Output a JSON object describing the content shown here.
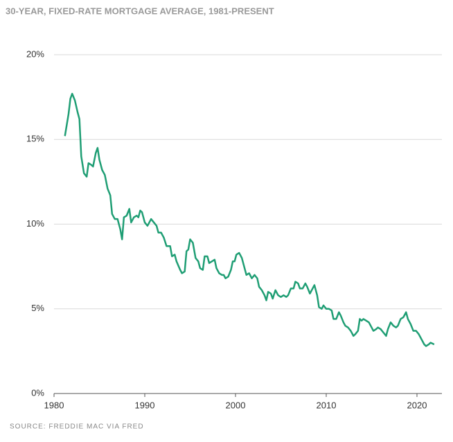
{
  "chart_data": {
    "type": "line",
    "title": "30-YEAR, FIXED-RATE MORTGAGE AVERAGE, 1981-PRESENT",
    "source": "SOURCE: FREDDIE MAC VIA FRED",
    "x": [
      1981.2,
      1981.6,
      1981.8,
      1982.0,
      1982.3,
      1982.6,
      1982.8,
      1983.0,
      1983.3,
      1983.6,
      1983.8,
      1984.1,
      1984.3,
      1984.6,
      1984.8,
      1985.0,
      1985.3,
      1985.6,
      1985.9,
      1986.2,
      1986.4,
      1986.7,
      1987.0,
      1987.3,
      1987.5,
      1987.7,
      1988.0,
      1988.3,
      1988.5,
      1988.8,
      1989.1,
      1989.3,
      1989.5,
      1989.7,
      1990.0,
      1990.3,
      1990.7,
      1991.0,
      1991.3,
      1991.5,
      1991.8,
      1992.1,
      1992.4,
      1992.8,
      1993.0,
      1993.3,
      1993.5,
      1993.9,
      1994.1,
      1994.4,
      1994.6,
      1994.8,
      1995.0,
      1995.3,
      1995.6,
      1995.9,
      1996.1,
      1996.4,
      1996.6,
      1996.9,
      1997.1,
      1997.4,
      1997.7,
      1997.9,
      1998.2,
      1998.5,
      1998.7,
      1998.9,
      1999.2,
      1999.5,
      1999.7,
      1999.9,
      2000.1,
      2000.4,
      2000.7,
      2000.9,
      2001.2,
      2001.5,
      2001.8,
      2002.1,
      2002.4,
      2002.6,
      2002.9,
      2003.2,
      2003.4,
      2003.6,
      2003.9,
      2004.1,
      2004.4,
      2004.7,
      2005.0,
      2005.3,
      2005.6,
      2005.8,
      2006.1,
      2006.4,
      2006.6,
      2006.9,
      2007.1,
      2007.4,
      2007.7,
      2007.9,
      2008.2,
      2008.5,
      2008.7,
      2009.0,
      2009.2,
      2009.5,
      2009.7,
      2010.0,
      2010.3,
      2010.6,
      2010.8,
      2011.1,
      2011.4,
      2011.6,
      2011.9,
      2012.1,
      2012.4,
      2012.7,
      2013.0,
      2013.2,
      2013.5,
      2013.7,
      2013.9,
      2014.1,
      2014.4,
      2014.7,
      2014.9,
      2015.2,
      2015.5,
      2015.7,
      2016.0,
      2016.3,
      2016.6,
      2016.8,
      2017.1,
      2017.4,
      2017.7,
      2017.9,
      2018.2,
      2018.5,
      2018.8,
      2019.0,
      2019.3,
      2019.6,
      2019.9,
      2020.2,
      2020.5,
      2020.8,
      2021.0,
      2021.3,
      2021.5,
      2021.9
    ],
    "series": [
      {
        "name": "30-year fixed rate",
        "color": "#1f9e74",
        "values": [
          15.2,
          16.5,
          17.4,
          17.7,
          17.3,
          16.6,
          16.2,
          14.0,
          13.0,
          12.8,
          13.6,
          13.5,
          13.4,
          14.2,
          14.5,
          13.8,
          13.2,
          12.9,
          12.1,
          11.7,
          10.6,
          10.3,
          10.3,
          9.7,
          9.1,
          10.4,
          10.5,
          10.9,
          10.1,
          10.4,
          10.5,
          10.4,
          10.8,
          10.7,
          10.1,
          9.9,
          10.3,
          10.1,
          9.9,
          9.5,
          9.5,
          9.2,
          8.7,
          8.7,
          8.1,
          8.2,
          7.8,
          7.3,
          7.1,
          7.2,
          8.4,
          8.5,
          9.1,
          8.9,
          8.0,
          7.8,
          7.4,
          7.3,
          8.1,
          8.1,
          7.7,
          7.8,
          7.9,
          7.4,
          7.1,
          7.0,
          7.0,
          6.8,
          6.9,
          7.3,
          7.8,
          7.8,
          8.2,
          8.3,
          8.0,
          7.6,
          7.0,
          7.1,
          6.8,
          7.0,
          6.8,
          6.3,
          6.1,
          5.8,
          5.5,
          6.0,
          5.9,
          5.6,
          6.1,
          5.8,
          5.7,
          5.8,
          5.7,
          5.8,
          6.2,
          6.2,
          6.6,
          6.5,
          6.2,
          6.2,
          6.5,
          6.3,
          5.9,
          6.2,
          6.4,
          5.8,
          5.1,
          5.0,
          5.2,
          5.0,
          5.0,
          4.9,
          4.4,
          4.4,
          4.8,
          4.6,
          4.2,
          4.0,
          3.9,
          3.7,
          3.4,
          3.5,
          3.7,
          4.4,
          4.3,
          4.4,
          4.3,
          4.2,
          4.0,
          3.7,
          3.8,
          3.9,
          3.8,
          3.6,
          3.4,
          3.8,
          4.2,
          4.0,
          3.9,
          4.0,
          4.4,
          4.5,
          4.8,
          4.4,
          4.1,
          3.7,
          3.7,
          3.5,
          3.2,
          2.9,
          2.8,
          2.9,
          3.0,
          2.9
        ]
      }
    ],
    "xlim": [
      1980,
      2022.75
    ],
    "xticks": [
      1980,
      1990,
      2000,
      2010,
      2020
    ],
    "ylim": [
      0,
      20
    ],
    "yticks": [
      {
        "value": 0,
        "label": "0%"
      },
      {
        "value": 5,
        "label": "5%"
      },
      {
        "value": 10,
        "label": "10%"
      },
      {
        "value": 15,
        "label": "15%"
      },
      {
        "value": 20,
        "label": "20%"
      }
    ],
    "grid": true
  }
}
